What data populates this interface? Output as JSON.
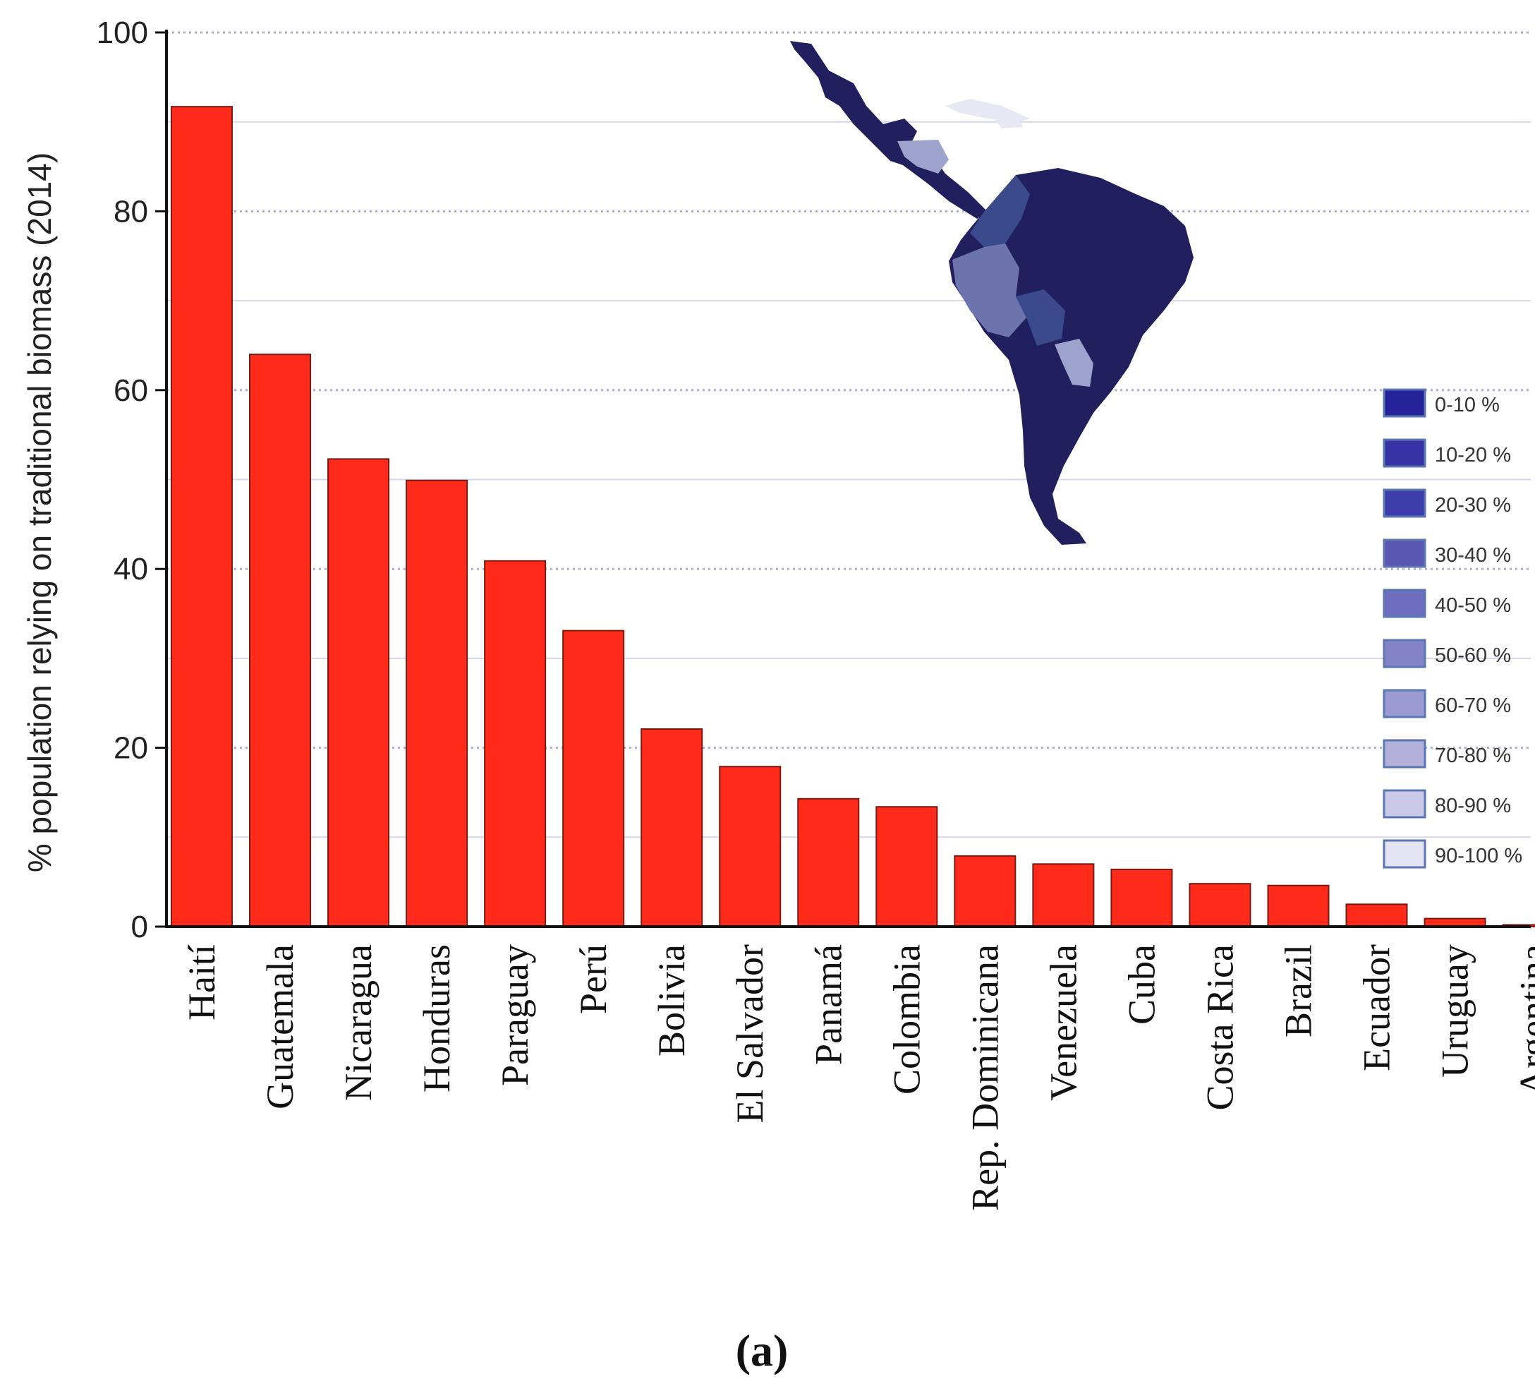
{
  "chart_data": {
    "type": "bar",
    "title": "",
    "panel_label": "(a)",
    "ylabel": "% population relying on traditional biomass (2014)",
    "xlabel": "",
    "ylim": [
      0,
      100
    ],
    "yticks": [
      0,
      20,
      40,
      60,
      80,
      100
    ],
    "grid": true,
    "bar_color": "#ff2a1a",
    "categories": [
      "Haití",
      "Guatemala",
      "Nicaragua",
      "Honduras",
      "Paraguay",
      "Perú",
      "Bolivia",
      "El Salvador",
      "Panamá",
      "Colombia",
      "Rep. Dominicana",
      "Venezuela",
      "Cuba",
      "Costa Rica",
      "Brazil",
      "Ecuador",
      "Uruguay",
      "Argentina"
    ],
    "values": [
      91.7,
      64,
      52.3,
      49.9,
      40.9,
      33.1,
      22.1,
      17.9,
      14.3,
      13.4,
      7.9,
      7.0,
      6.4,
      4.8,
      4.6,
      2.5,
      0.9,
      0.2
    ]
  },
  "inset_map": {
    "subject": "Latin America",
    "colors": {
      "darkest": "#221f5e",
      "dark": "#3b4a8a",
      "medium": "#6d74ad",
      "light": "#9da3cc",
      "pale": "#e8e8f4"
    },
    "legend": [
      {
        "label": "0-10 %",
        "color": "#25239a"
      },
      {
        "label": "10-20 %",
        "color": "#3533a5"
      },
      {
        "label": "20-30 %",
        "color": "#3d3cab"
      },
      {
        "label": "30-40 %",
        "color": "#5a58b3"
      },
      {
        "label": "40-50 %",
        "color": "#6f6dbd"
      },
      {
        "label": "50-60 %",
        "color": "#8583c7"
      },
      {
        "label": "60-70 %",
        "color": "#9c9ad2"
      },
      {
        "label": "70-80 %",
        "color": "#b4b2dd"
      },
      {
        "label": "80-90 %",
        "color": "#cac9e8"
      },
      {
        "label": "90-100 %",
        "color": "#e4e3f3"
      }
    ]
  }
}
